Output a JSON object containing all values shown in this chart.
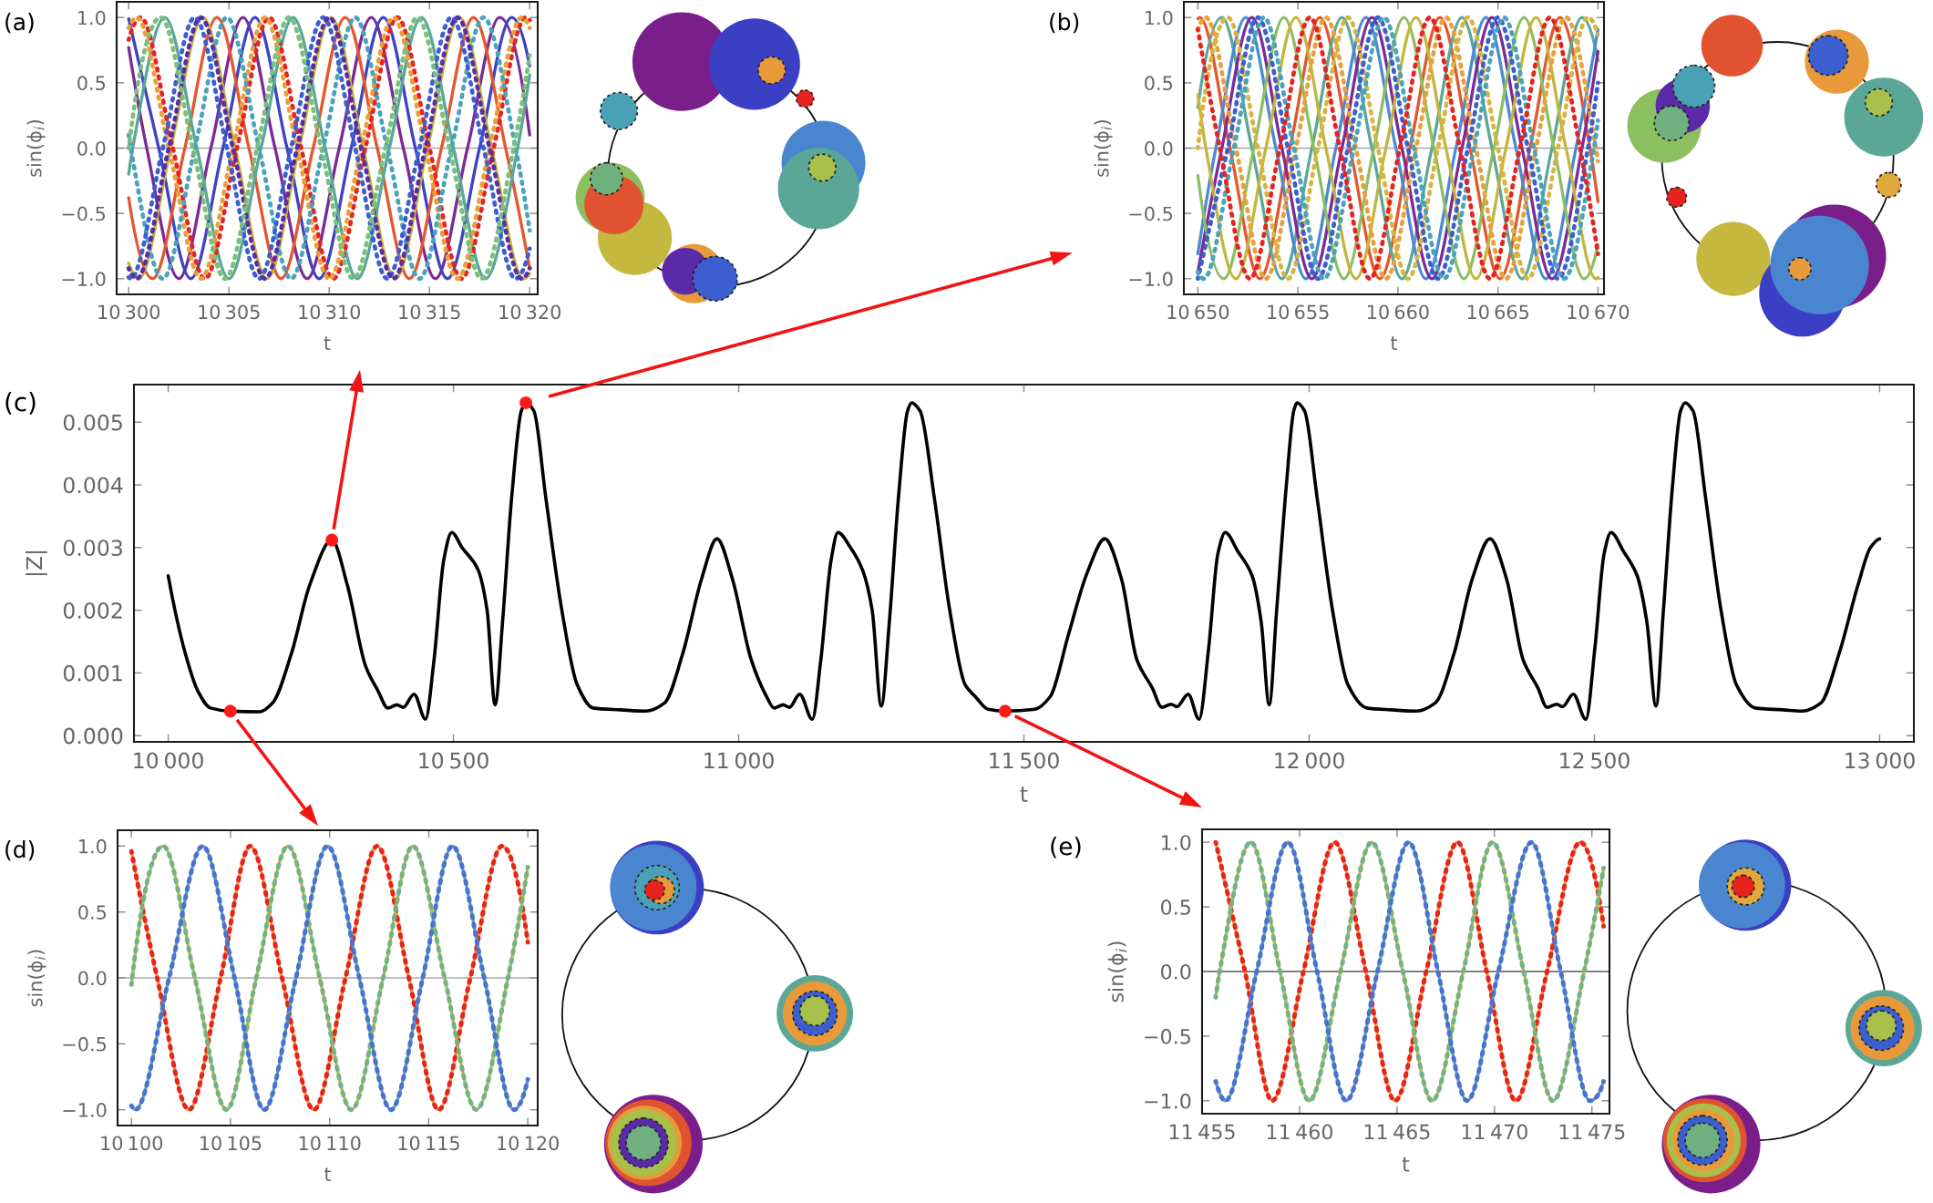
{
  "chart_data": [
    {
      "type": "line",
      "title": "(a)",
      "xlabel": "t",
      "ylabel": "sin(ϕ$_{i}$)",
      "xlim": [
        10299.4,
        10320.4
      ],
      "ylim": [
        -1.12,
        1.12
      ],
      "xticks": [
        {
          "value": 10300,
          "label": "10 300"
        },
        {
          "value": 10305,
          "label": "10 305"
        },
        {
          "value": 10310,
          "label": "10 310"
        },
        {
          "value": 10315,
          "label": "10 315"
        },
        {
          "value": 10320,
          "label": "10 320"
        }
      ],
      "yticks": [
        {
          "value": -1,
          "label": "−1.0"
        },
        {
          "value": -0.5,
          "label": "−0.5"
        },
        {
          "value": 0,
          "label": "0.0"
        },
        0.5,
        {
          "value": 1,
          "label": "1.0"
        }
      ],
      "ref_lines": [
        {
          "axis": "y",
          "value": 0,
          "color": "#a8a8a8"
        }
      ],
      "series": [
        {
          "color": "#7b2a96",
          "line_style": "solid",
          "x": [
            10300,
            10300.9,
            10302.5,
            10304.1,
            10305.7,
            10307.3,
            10308.9,
            10310.5,
            10312.1,
            10313.7,
            10315.3,
            10316.9,
            10318.5,
            10320
          ],
          "values": [
            0.77,
            0,
            -1,
            0,
            1,
            0,
            -1,
            0,
            1,
            0,
            -1,
            0,
            1,
            0.1
          ]
        },
        {
          "color": "#3d44c2",
          "line_style": "solid",
          "x": [
            10300,
            10301.5,
            10303.1,
            10304.7,
            10306.3,
            10307.9,
            10309.5,
            10311.1,
            10312.7,
            10314.3,
            10315.9,
            10317.5,
            10319.1,
            10320
          ],
          "values": [
            0.99,
            0,
            -1,
            0,
            1,
            0,
            -1,
            0,
            1,
            0,
            -1,
            0,
            1,
            0.63
          ]
        },
        {
          "color": "#e4572e",
          "line_style": "solid",
          "x": [
            10300,
            10301.2,
            10302.8,
            10304.4,
            10306,
            10307.6,
            10309.2,
            10310.8,
            10312.4,
            10314,
            10315.6,
            10317.2,
            10318.8,
            10320
          ],
          "values": [
            -0.38,
            -1,
            0,
            1,
            0,
            -1,
            0,
            1,
            0,
            -1,
            0,
            1,
            0,
            -0.92
          ]
        },
        {
          "color": "#c3b63f",
          "line_style": "solid",
          "x": [
            10300,
            10300.5,
            10302.1,
            10303.7,
            10305.3,
            10306.9,
            10308.5,
            10310.1,
            10311.7,
            10313.3,
            10314.9,
            10316.5,
            10318.1,
            10319.7,
            10320
          ],
          "values": [
            -0.88,
            -1,
            0,
            1,
            0,
            -1,
            0,
            1,
            0,
            -1,
            0,
            1,
            0,
            -1,
            -0.96
          ]
        },
        {
          "color": "#5ba798",
          "line_style": "solid",
          "x": [
            10300,
            10300.2,
            10301.8,
            10303.4,
            10305,
            10306.6,
            10308.2,
            10309.8,
            10311.4,
            10313,
            10314.6,
            10316.2,
            10317.8,
            10319.4,
            10320
          ],
          "values": [
            -0.2,
            0,
            1,
            0,
            -1,
            0,
            1,
            0,
            -1,
            0,
            1,
            0,
            -1,
            0,
            0.56
          ]
        },
        {
          "color": "#e8231f",
          "line_style": "dotted",
          "x": [
            10300,
            10300.6,
            10302.2,
            10303.8,
            10305.4,
            10307,
            10308.6,
            10310.2,
            10311.8,
            10313.4,
            10315,
            10316.6,
            10318.2,
            10319.8,
            10320
          ],
          "values": [
            0.83,
            1,
            0,
            -1,
            0,
            1,
            0,
            -1,
            0,
            1,
            0,
            -1,
            0,
            1,
            0.98
          ]
        },
        {
          "color": "#e9a03b",
          "line_style": "dotted",
          "x": [
            10300,
            10300.4,
            10302,
            10303.6,
            10305.2,
            10306.8,
            10308.4,
            10310,
            10311.6,
            10313.2,
            10314.8,
            10316.4,
            10318,
            10319.6,
            10320
          ],
          "values": [
            0.92,
            1,
            0,
            -1,
            0,
            1,
            0,
            -1,
            0,
            1,
            0,
            -1,
            0,
            1,
            0.92
          ]
        },
        {
          "color": "#4aa2bd",
          "line_style": "dotted",
          "x": [
            10300,
            10300.1,
            10301.7,
            10303.3,
            10304.9,
            10306.5,
            10308.1,
            10309.7,
            10311.3,
            10312.9,
            10314.5,
            10316.1,
            10317.7,
            10319.3,
            10320
          ],
          "values": [
            0.1,
            0,
            -1,
            0,
            1,
            0,
            -1,
            0,
            1,
            0,
            -1,
            0,
            1,
            0,
            -0.63
          ]
        },
        {
          "color": "#3c5fd0",
          "line_style": "dotted",
          "x": [
            10300,
            10300.1,
            10301.7,
            10303.3,
            10304.9,
            10306.5,
            10308.1,
            10309.7,
            10311.3,
            10312.9,
            10314.5,
            10316.1,
            10317.7,
            10319.3,
            10320
          ],
          "values": [
            -0.99,
            -1,
            0,
            1,
            0,
            -1,
            0,
            1,
            0,
            -1,
            0,
            1,
            0,
            -1,
            -0.77
          ]
        },
        {
          "color": "#5a2ca8",
          "line_style": "dotted",
          "x": [
            10300,
            10300.4,
            10302,
            10303.6,
            10305.2,
            10306.8,
            10308.4,
            10310,
            10311.6,
            10313.2,
            10314.8,
            10316.4,
            10318,
            10319.6,
            10320
          ],
          "values": [
            -0.92,
            -1,
            0,
            1,
            0,
            -1,
            0,
            1,
            0,
            -1,
            0,
            1,
            0,
            -1,
            -0.92
          ]
        },
        {
          "color": "#7abf7a",
          "line_style": "dotted",
          "x": [
            10300,
            10301.6,
            10303.2,
            10304.8,
            10306.4,
            10308,
            10309.6,
            10311.2,
            10312.8,
            10314.4,
            10316,
            10317.6,
            10319.2,
            10320
          ],
          "values": [
            0,
            1,
            0,
            -1,
            0,
            1,
            0,
            -1,
            0,
            1,
            0,
            -1,
            0,
            0.71
          ]
        }
      ]
    },
    {
      "type": "line",
      "title": "(b)",
      "xlabel": "t",
      "ylabel": "sin(ϕ$_{i}$)",
      "xlim": [
        10649.3,
        10670.3
      ],
      "ylim": [
        -1.12,
        1.12
      ],
      "xticks": [
        {
          "value": 10650,
          "label": "10 650"
        },
        {
          "value": 10655,
          "label": "10 655"
        },
        {
          "value": 10660,
          "label": "10 660"
        },
        {
          "value": 10665,
          "label": "10 665"
        },
        {
          "value": 10670,
          "label": "10 670"
        }
      ],
      "yticks": [
        {
          "value": -1,
          "label": "−1.0"
        },
        {
          "value": -0.5,
          "label": "−0.5"
        },
        {
          "value": 0,
          "label": "0.0"
        },
        0.5,
        {
          "value": 1,
          "label": "1.0"
        }
      ],
      "ref_lines": [
        {
          "axis": "y",
          "value": 0,
          "color": "#a8a8a8"
        }
      ],
      "series": [
        {
          "color": "#e4572e",
          "line_style": "solid",
          "x": [
            10650,
            10650.1,
            10651.6,
            10653.1,
            10654.6,
            10656.1,
            10657.6,
            10659.1,
            10660.6,
            10662.1,
            10663.6,
            10665.1,
            10666.6,
            10668.1,
            10669.6,
            10670
          ],
          "values": [
            0.99,
            1,
            0,
            -1,
            0,
            1,
            0,
            -1,
            0,
            1,
            0,
            -1,
            0,
            1,
            0,
            -0.41
          ]
        },
        {
          "color": "#5ba798",
          "line_style": "solid",
          "x": [
            10650,
            10651.2,
            10652.7,
            10654.2,
            10655.7,
            10657.2,
            10658.7,
            10660.2,
            10661.7,
            10663.2,
            10664.7,
            10666.2,
            10667.7,
            10669.2,
            10670
          ],
          "values": [
            0.31,
            1,
            0,
            -1,
            0,
            1,
            0,
            -1,
            0,
            1,
            0,
            -1,
            0,
            1,
            0.67
          ]
        },
        {
          "color": "#4a8ad4",
          "line_style": "solid",
          "x": [
            10650,
            10650.9,
            10652.4,
            10653.9,
            10655.4,
            10656.9,
            10658.4,
            10659.9,
            10661.4,
            10662.9,
            10664.4,
            10665.9,
            10667.4,
            10668.9,
            10670
          ],
          "values": [
            -0.81,
            0,
            1,
            0,
            -1,
            0,
            1,
            0,
            -1,
            0,
            1,
            0,
            -1,
            0,
            0.91
          ]
        },
        {
          "color": "#7b2a96",
          "line_style": "solid",
          "x": [
            10650,
            10651.2,
            10652.7,
            10654.2,
            10655.7,
            10657.2,
            10658.7,
            10660.2,
            10661.7,
            10663.2,
            10664.7,
            10666.2,
            10667.7,
            10669.2,
            10670
          ],
          "values": [
            -0.95,
            0,
            1,
            0,
            -1,
            0,
            1,
            0,
            -1,
            0,
            1,
            0,
            -1,
            0,
            0.74
          ]
        },
        {
          "color": "#8dbe62",
          "line_style": "solid",
          "x": [
            10650,
            10651.3,
            10652.8,
            10654.3,
            10655.8,
            10657.3,
            10658.8,
            10660.3,
            10661.8,
            10663.3,
            10664.8,
            10666.3,
            10667.8,
            10669.3,
            10670
          ],
          "values": [
            -0.21,
            -1,
            0,
            1,
            0,
            -1,
            0,
            1,
            0,
            -1,
            0,
            1,
            0,
            -1,
            -0.74
          ]
        },
        {
          "color": "#c3b63f",
          "line_style": "solid",
          "x": [
            10650,
            10650.4,
            10651.9,
            10653.4,
            10654.9,
            10656.4,
            10657.9,
            10659.4,
            10660.9,
            10662.4,
            10663.9,
            10665.4,
            10666.9,
            10668.4,
            10669.9,
            10670
          ],
          "values": [
            0.41,
            0,
            -1,
            0,
            1,
            0,
            -1,
            0,
            1,
            0,
            -1,
            0,
            1,
            0,
            -1,
            -0.99
          ]
        },
        {
          "color": "#e9a03b",
          "line_style": "dotted",
          "x": [
            10650,
            10650.4,
            10651.9,
            10653.4,
            10654.9,
            10656.4,
            10657.9,
            10659.4,
            10660.9,
            10662.4,
            10663.9,
            10665.4,
            10666.9,
            10668.4,
            10669.9,
            10670
          ],
          "values": [
            0.91,
            1,
            0,
            -1,
            0,
            1,
            0,
            -1,
            0,
            1,
            0,
            -1,
            0,
            1,
            0,
            -0.1
          ]
        },
        {
          "color": "#d8b441",
          "line_style": "dotted",
          "x": [
            10650,
            10651.5,
            10653,
            10654.5,
            10656,
            10657.5,
            10659,
            10660.5,
            10662,
            10663.5,
            10665,
            10666.5,
            10668,
            10669.5,
            10670
          ],
          "values": [
            0,
            1,
            0,
            -1,
            0,
            1,
            0,
            -1,
            0,
            1,
            0,
            -1,
            0,
            1,
            0.87
          ]
        },
        {
          "color": "#3c5fd0",
          "line_style": "dotted",
          "x": [
            10650,
            10651.5,
            10653,
            10654.5,
            10656,
            10657.5,
            10659,
            10660.5,
            10662,
            10663.5,
            10665,
            10666.5,
            10668,
            10669.5,
            10670
          ],
          "values": [
            -1,
            0,
            1,
            0,
            -1,
            0,
            1,
            0,
            -1,
            0,
            1,
            0,
            -1,
            0,
            0.5
          ]
        },
        {
          "color": "#4aa2bd",
          "line_style": "dotted",
          "x": [
            10650,
            10650.3,
            10651.8,
            10653.3,
            10654.8,
            10656.3,
            10657.8,
            10659.3,
            10660.8,
            10662.3,
            10663.8,
            10665.3,
            10666.8,
            10668.3,
            10669.8,
            10670
          ],
          "values": [
            -0.95,
            -1,
            0,
            1,
            0,
            -1,
            0,
            1,
            0,
            -1,
            0,
            1,
            0,
            -1,
            0,
            0.21
          ]
        },
        {
          "color": "#e8231f",
          "line_style": "dotted",
          "x": [
            10650,
            10651.1,
            10652.6,
            10654.1,
            10655.6,
            10657.1,
            10658.6,
            10660.1,
            10661.6,
            10663.1,
            10664.6,
            10666.1,
            10667.6,
            10669.1,
            10670
          ],
          "values": [
            0.91,
            0,
            -1,
            0,
            1,
            0,
            -1,
            0,
            1,
            0,
            -1,
            0,
            1,
            0,
            -0.81
          ]
        }
      ]
    },
    {
      "type": "line",
      "title": "(c)",
      "xlabel": "t",
      "ylabel": "|Z|",
      "xlim": [
        9940,
        13060
      ],
      "ylim": [
        -0.0001,
        0.0056
      ],
      "xticks": [
        {
          "value": 10000,
          "label": "10 000"
        },
        {
          "value": 10500,
          "label": "10 500"
        },
        {
          "value": 11000,
          "label": "11 000"
        },
        {
          "value": 11500,
          "label": "11 500"
        },
        {
          "value": 12000,
          "label": "12 000"
        },
        {
          "value": 12500,
          "label": "12 500"
        },
        {
          "value": 13000,
          "label": "13 000"
        }
      ],
      "yticks": [
        {
          "value": 0,
          "label": "0.000"
        },
        0.001,
        0.002,
        0.003,
        0.004,
        0.005
      ],
      "series": [
        {
          "color": "#000000",
          "line_style": "solid",
          "x": [
            10000,
            10030,
            10052,
            10074,
            10109,
            10161,
            10183,
            10216,
            10248,
            10287,
            10314,
            10346,
            10368,
            10385,
            10401,
            10412,
            10431,
            10451,
            10466,
            10483,
            10497,
            10515,
            10543,
            10559,
            10573,
            10586,
            10602,
            10619,
            10627,
            10641,
            10662,
            10690,
            10717,
            10745,
            10793,
            10837,
            10870,
            10902,
            10935,
            10962,
            10989,
            11022,
            11049,
            11062,
            11078,
            11089,
            11107,
            11129,
            11144,
            11162,
            11174,
            11196,
            11218,
            11234,
            11250,
            11264,
            11280,
            11296,
            11303,
            11318,
            11343,
            11370,
            11397,
            11415,
            11437,
            11467,
            11519,
            11546,
            11578,
            11611,
            11642,
            11671,
            11698,
            11725,
            11742,
            11758,
            11768,
            11788,
            11807,
            11824,
            11840,
            11853,
            11875,
            11900,
            11916,
            11930,
            11943,
            11960,
            11973,
            11979,
            11992,
            12014,
            12041,
            12068,
            12101,
            12145,
            12188,
            12221,
            12254,
            12286,
            12317,
            12346,
            12375,
            12401,
            12417,
            12434,
            12444,
            12463,
            12485,
            12501,
            12517,
            12529,
            12551,
            12575,
            12592,
            12608,
            12621,
            12637,
            12651,
            12659,
            12673,
            12695,
            12722,
            12749,
            12782,
            12831,
            12864,
            12897,
            12929,
            12962,
            12984,
            13000
          ],
          "values": [
            0.00255,
            0.00131,
            0.00071,
            0.00044,
            0.00039,
            0.00038,
            0.00052,
            0.00131,
            0.0024,
            0.00312,
            0.0024,
            0.00111,
            0.00071,
            0.00044,
            0.00049,
            0.00045,
            0.00066,
            0.00026,
            0.00121,
            0.0028,
            0.00324,
            0.003,
            0.00265,
            0.002,
            0.00049,
            0.0018,
            0.00379,
            0.00518,
            0.00531,
            0.00518,
            0.00379,
            0.002,
            0.00081,
            0.00044,
            0.00041,
            0.00039,
            0.00052,
            0.00131,
            0.0025,
            0.00314,
            0.0025,
            0.00121,
            0.00062,
            0.00044,
            0.00049,
            0.00045,
            0.00066,
            0.00026,
            0.00121,
            0.0028,
            0.00324,
            0.003,
            0.00262,
            0.002,
            0.00047,
            0.0018,
            0.00379,
            0.00518,
            0.00531,
            0.00518,
            0.00379,
            0.002,
            0.00081,
            0.00062,
            0.00042,
            0.00039,
            0.00042,
            0.00062,
            0.00161,
            0.0026,
            0.00314,
            0.0025,
            0.00121,
            0.00076,
            0.00045,
            0.0005,
            0.00046,
            0.00066,
            0.00026,
            0.00141,
            0.0029,
            0.00324,
            0.00294,
            0.00255,
            0.00181,
            0.00049,
            0.002,
            0.00399,
            0.00518,
            0.00531,
            0.00518,
            0.00379,
            0.002,
            0.00081,
            0.00044,
            0.00041,
            0.00039,
            0.00052,
            0.00131,
            0.0025,
            0.00314,
            0.0025,
            0.00121,
            0.00076,
            0.00045,
            0.0005,
            0.00046,
            0.00066,
            0.00026,
            0.00141,
            0.0029,
            0.00324,
            0.00294,
            0.00255,
            0.00181,
            0.00047,
            0.002,
            0.00399,
            0.00518,
            0.00531,
            0.00518,
            0.00379,
            0.002,
            0.00081,
            0.00044,
            0.00041,
            0.00039,
            0.00052,
            0.00131,
            0.0024,
            0.003,
            0.00314
          ]
        },
        {
          "type": "scatter",
          "color": "#ff1a1a",
          "x": [
            10109,
            10287,
            10627,
            11467
          ],
          "values": [
            0.00039,
            0.00312,
            0.00531,
            0.00039
          ]
        }
      ]
    },
    {
      "type": "line",
      "title": "(d)",
      "xlabel": "t",
      "ylabel": "sin(ϕ$_{i}$)",
      "xlim": [
        10099.3,
        10120.5
      ],
      "ylim": [
        -1.12,
        1.12
      ],
      "xticks": [
        {
          "value": 10100,
          "label": "10 100"
        },
        {
          "value": 10105,
          "label": "10 105"
        },
        {
          "value": 10110,
          "label": "10 110"
        },
        {
          "value": 10115,
          "label": "10 115"
        },
        {
          "value": 10120,
          "label": "10 120"
        }
      ],
      "yticks": [
        {
          "value": -1,
          "label": "−1.0"
        },
        {
          "value": -0.5,
          "label": "−0.5"
        },
        {
          "value": 0,
          "label": "0.0"
        },
        0.5,
        {
          "value": 1,
          "label": "1.0"
        }
      ],
      "ref_lines": [
        {
          "axis": "y",
          "value": 0,
          "color": "#a8a8a8"
        }
      ],
      "series": [
        {
          "color": "#e9a03b",
          "line_style": "solid",
          "x": [
            10100,
            10101.3,
            10102.9,
            10104.5,
            10106,
            10107.6,
            10109.2,
            10110.8,
            10112.4,
            10114,
            10115.5,
            10117.1,
            10118.7,
            10120
          ],
          "values": [
            0.96,
            0,
            -1,
            0,
            1,
            0,
            -1,
            0,
            1,
            0,
            -1,
            0,
            1,
            0.27
          ]
        },
        {
          "color": "#e8231f",
          "line_style": "dotted",
          "x": [
            10100,
            10101.3,
            10102.9,
            10104.5,
            10106,
            10107.6,
            10109.2,
            10110.8,
            10112.4,
            10114,
            10115.5,
            10117.1,
            10118.7,
            10120
          ],
          "values": [
            0.96,
            0,
            -1,
            0,
            1,
            0,
            -1,
            0,
            1,
            0,
            -1,
            0,
            1,
            0.27
          ]
        },
        {
          "color": "#c3b63f",
          "line_style": "solid",
          "x": [
            10100,
            10101.6,
            10103.2,
            10104.8,
            10106.3,
            10107.9,
            10109.5,
            10111.1,
            10112.7,
            10114.2,
            10115.8,
            10117.4,
            10119,
            10120
          ],
          "values": [
            -0.05,
            1,
            0,
            -1,
            0,
            1,
            0,
            -1,
            0,
            1,
            0,
            -1,
            0,
            0.84
          ]
        },
        {
          "color": "#6fb38a",
          "line_style": "dotted",
          "x": [
            10100,
            10101.6,
            10103.2,
            10104.8,
            10106.3,
            10107.9,
            10109.5,
            10111.1,
            10112.7,
            10114.2,
            10115.8,
            10117.4,
            10119,
            10120
          ],
          "values": [
            -0.05,
            1,
            0,
            -1,
            0,
            1,
            0,
            -1,
            0,
            1,
            0,
            -1,
            0,
            0.84
          ]
        },
        {
          "color": "#5ba798",
          "line_style": "solid",
          "x": [
            10100,
            10100.2,
            10101.9,
            10103.6,
            10105.2,
            10106.7,
            10108.3,
            10109.9,
            10111.5,
            10113.1,
            10114.7,
            10116.2,
            10117.8,
            10119.3,
            10120
          ],
          "values": [
            -0.97,
            -1,
            0,
            1,
            0,
            -1,
            0,
            1,
            0,
            -1,
            0,
            1,
            0,
            -1,
            -0.77
          ]
        },
        {
          "color": "#4b6fd6",
          "line_style": "dotted",
          "x": [
            10100,
            10100.2,
            10101.9,
            10103.6,
            10105.2,
            10106.7,
            10108.3,
            10109.9,
            10111.5,
            10113.1,
            10114.7,
            10116.2,
            10117.8,
            10119.3,
            10120
          ],
          "values": [
            -0.97,
            -1,
            0,
            1,
            0,
            -1,
            0,
            1,
            0,
            -1,
            0,
            1,
            0,
            -1,
            -0.77
          ]
        }
      ]
    },
    {
      "type": "line",
      "title": "(e)",
      "xlabel": "t",
      "ylabel": "sin(ϕ$_{i}$)",
      "xlim": [
        11455,
        11475.9
      ],
      "ylim": [
        -1.1,
        1.1
      ],
      "xticks": [
        {
          "value": 11455,
          "label": "11 455"
        },
        {
          "value": 11460,
          "label": "11 460"
        },
        {
          "value": 11465,
          "label": "11 465"
        },
        {
          "value": 11470,
          "label": "11 470"
        },
        {
          "value": 11475,
          "label": "11 475"
        }
      ],
      "yticks": [
        {
          "value": -1,
          "label": "−1.0"
        },
        {
          "value": -0.5,
          "label": "−0.5"
        },
        {
          "value": 0,
          "label": "0.0"
        },
        0.5,
        {
          "value": 1,
          "label": "1.0"
        }
      ],
      "ref_lines": [
        {
          "axis": "y",
          "value": 0,
          "color": "#555555"
        }
      ],
      "series": [
        {
          "color": "#e9a03b",
          "line_style": "solid",
          "x": [
            11455.7,
            11457.2,
            11458.6,
            11460.2,
            11461.8,
            11463.4,
            11464.9,
            11466.5,
            11468.1,
            11469.6,
            11471.1,
            11472.7,
            11474.4,
            11475.6
          ],
          "values": [
            1,
            0,
            -1,
            0,
            1,
            0,
            -1,
            0,
            1,
            0,
            -1,
            0,
            1,
            0.35
          ]
        },
        {
          "color": "#e8231f",
          "line_style": "dotted",
          "x": [
            11455.7,
            11457.2,
            11458.6,
            11460.2,
            11461.8,
            11463.4,
            11464.9,
            11466.5,
            11468.1,
            11469.6,
            11471.1,
            11472.7,
            11474.4,
            11475.6
          ],
          "values": [
            1,
            0,
            -1,
            0,
            1,
            0,
            -1,
            0,
            1,
            0,
            -1,
            0,
            1,
            0.35
          ]
        },
        {
          "color": "#c3b63f",
          "line_style": "solid",
          "x": [
            11455.7,
            11455.9,
            11457.5,
            11459,
            11460.5,
            11462.1,
            11463.7,
            11465.3,
            11466.8,
            11468.4,
            11469.9,
            11471.5,
            11473,
            11474.6,
            11475.6
          ],
          "values": [
            -0.2,
            0,
            1,
            0,
            -1,
            0,
            1,
            0,
            -1,
            0,
            1,
            0,
            -1,
            0,
            0.8
          ]
        },
        {
          "color": "#6fb38a",
          "line_style": "dotted",
          "x": [
            11455.7,
            11455.9,
            11457.5,
            11459,
            11460.5,
            11462.1,
            11463.7,
            11465.3,
            11466.8,
            11468.4,
            11469.9,
            11471.5,
            11473,
            11474.6,
            11475.6
          ],
          "values": [
            -0.2,
            0,
            1,
            0,
            -1,
            0,
            1,
            0,
            -1,
            0,
            1,
            0,
            -1,
            0,
            0.8
          ]
        },
        {
          "color": "#5ba798",
          "line_style": "solid",
          "x": [
            11455.7,
            11456.2,
            11457.8,
            11459.4,
            11460.9,
            11462.4,
            11464,
            11465.6,
            11467.1,
            11468.6,
            11470.2,
            11471.9,
            11473.4,
            11474.9,
            11475.6
          ],
          "values": [
            -0.85,
            -1,
            0,
            1,
            0,
            -1,
            0,
            1,
            0,
            -1,
            0,
            1,
            0,
            -1,
            -0.85
          ]
        },
        {
          "color": "#4b6fd6",
          "line_style": "dotted",
          "x": [
            11455.7,
            11456.2,
            11457.8,
            11459.4,
            11460.9,
            11462.4,
            11464,
            11465.6,
            11467.1,
            11468.6,
            11470.2,
            11471.9,
            11473.4,
            11474.9,
            11475.6
          ],
          "values": [
            -0.85,
            -1,
            0,
            1,
            0,
            -1,
            0,
            1,
            0,
            -1,
            0,
            1,
            0,
            -1,
            -0.85
          ]
        }
      ]
    }
  ]
}
